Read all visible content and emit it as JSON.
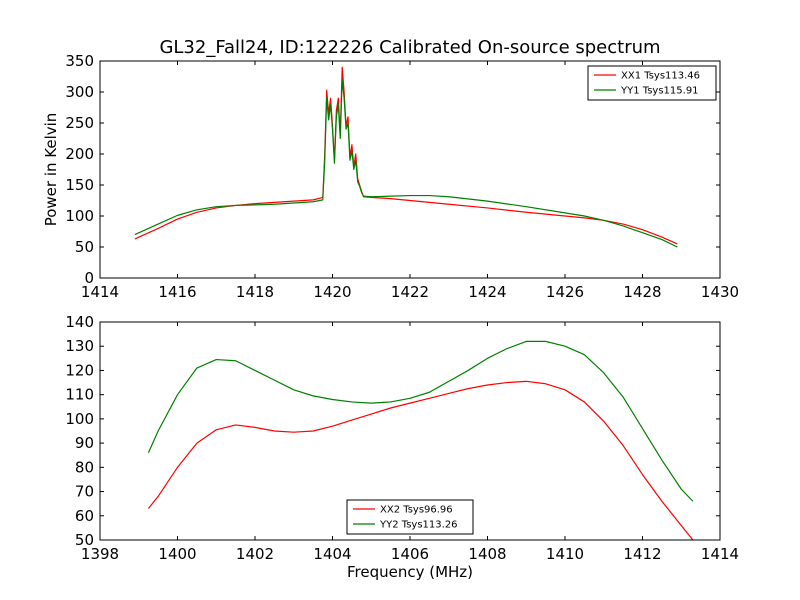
{
  "figure_title": "GL32_Fall24, ID:122226 Calibrated On-source spectrum",
  "colors": {
    "red": "#ff0000",
    "green": "#008000",
    "axes": "#000000",
    "background": "#ffffff"
  },
  "chart_data": [
    {
      "type": "line",
      "title": "GL32_Fall24, ID:122226 Calibrated On-source spectrum",
      "xlabel": "",
      "ylabel": "Power in Kelvin",
      "xlim": [
        1414,
        1430
      ],
      "ylim": [
        0,
        350
      ],
      "xticks": [
        "1414",
        "1416",
        "1418",
        "1420",
        "1422",
        "1424",
        "1426",
        "1428",
        "1430"
      ],
      "yticks": [
        "0",
        "50",
        "100",
        "150",
        "200",
        "250",
        "300",
        "350"
      ],
      "legend_position": "top-right",
      "grid": false,
      "series": [
        {
          "name": "XX1 Tsys113.46",
          "color": "#ff0000",
          "x": [
            1414.9,
            1415.5,
            1416.0,
            1416.5,
            1417.0,
            1417.5,
            1418.0,
            1418.5,
            1419.0,
            1419.5,
            1419.75,
            1419.8,
            1419.85,
            1419.9,
            1419.95,
            1420.0,
            1420.05,
            1420.1,
            1420.15,
            1420.2,
            1420.25,
            1420.3,
            1420.35,
            1420.4,
            1420.45,
            1420.5,
            1420.55,
            1420.6,
            1420.65,
            1420.7,
            1420.75,
            1420.8,
            1421.0,
            1421.5,
            1422.0,
            1422.5,
            1423.0,
            1424.0,
            1425.0,
            1426.0,
            1426.5,
            1427.0,
            1427.5,
            1428.0,
            1428.5,
            1428.9
          ],
          "y": [
            63,
            80,
            95,
            106,
            113,
            117,
            120,
            122,
            124,
            126,
            130,
            200,
            303,
            265,
            290,
            245,
            190,
            270,
            290,
            230,
            340,
            300,
            245,
            260,
            195,
            215,
            180,
            200,
            160,
            150,
            140,
            131,
            130,
            128,
            125,
            122,
            119,
            113,
            106,
            100,
            97,
            93,
            87,
            78,
            66,
            55
          ]
        },
        {
          "name": "YY1 Tsys115.91",
          "color": "#008000",
          "x": [
            1414.9,
            1415.5,
            1416.0,
            1416.5,
            1417.0,
            1417.5,
            1418.0,
            1418.5,
            1419.0,
            1419.5,
            1419.75,
            1419.8,
            1419.85,
            1419.9,
            1419.95,
            1420.0,
            1420.05,
            1420.1,
            1420.15,
            1420.2,
            1420.25,
            1420.3,
            1420.35,
            1420.4,
            1420.45,
            1420.5,
            1420.55,
            1420.6,
            1420.65,
            1420.7,
            1420.75,
            1420.8,
            1421.0,
            1421.5,
            1422.0,
            1422.5,
            1423.0,
            1424.0,
            1425.0,
            1426.0,
            1426.5,
            1427.0,
            1427.5,
            1428.0,
            1428.5,
            1428.9
          ],
          "y": [
            70,
            87,
            101,
            110,
            115,
            117,
            118,
            119,
            121,
            123,
            126,
            190,
            290,
            255,
            280,
            240,
            185,
            260,
            280,
            225,
            320,
            290,
            240,
            250,
            190,
            205,
            175,
            190,
            155,
            148,
            138,
            132,
            131,
            132,
            133,
            133,
            131,
            124,
            115,
            105,
            100,
            93,
            84,
            73,
            62,
            50
          ]
        }
      ]
    },
    {
      "type": "line",
      "title": "",
      "xlabel": "Frequency (MHz)",
      "ylabel": "",
      "xlim": [
        1398,
        1414
      ],
      "ylim": [
        50,
        140
      ],
      "xticks": [
        "1398",
        "1400",
        "1402",
        "1404",
        "1406",
        "1408",
        "1410",
        "1412",
        "1414"
      ],
      "yticks": [
        "50",
        "60",
        "70",
        "80",
        "90",
        "100",
        "110",
        "120",
        "130",
        "140"
      ],
      "legend_position": "bottom-center",
      "grid": false,
      "series": [
        {
          "name": "XX2 Tsys96.96",
          "color": "#ff0000",
          "x": [
            1399.25,
            1399.5,
            1400.0,
            1400.5,
            1401.0,
            1401.5,
            1402.0,
            1402.5,
            1403.0,
            1403.5,
            1404.0,
            1404.5,
            1405.0,
            1405.5,
            1406.0,
            1406.5,
            1407.0,
            1407.5,
            1408.0,
            1408.5,
            1409.0,
            1409.5,
            1410.0,
            1410.5,
            1411.0,
            1411.5,
            1412.0,
            1412.5,
            1413.0,
            1413.3
          ],
          "y": [
            63,
            68,
            80,
            90,
            95.5,
            97.5,
            96.5,
            95,
            94.5,
            95,
            97,
            99.5,
            102,
            104.5,
            106.5,
            108.5,
            110.5,
            112.5,
            114,
            115,
            115.5,
            114.5,
            112,
            107,
            99,
            89,
            77,
            66,
            56,
            50
          ]
        },
        {
          "name": "YY2 Tsys113.26",
          "color": "#008000",
          "x": [
            1399.25,
            1399.5,
            1400.0,
            1400.5,
            1401.0,
            1401.5,
            1402.0,
            1402.5,
            1403.0,
            1403.5,
            1404.0,
            1404.5,
            1405.0,
            1405.5,
            1406.0,
            1406.5,
            1407.0,
            1407.5,
            1408.0,
            1408.5,
            1409.0,
            1409.5,
            1410.0,
            1410.5,
            1411.0,
            1411.5,
            1412.0,
            1412.5,
            1413.0,
            1413.3
          ],
          "y": [
            86,
            95,
            110,
            121,
            124.5,
            124,
            120,
            116,
            112,
            109.5,
            108,
            107,
            106.5,
            107,
            108.5,
            111,
            115.5,
            120,
            125,
            129,
            132,
            132,
            130,
            126.5,
            119,
            109,
            96,
            83,
            71,
            66
          ]
        }
      ]
    }
  ]
}
